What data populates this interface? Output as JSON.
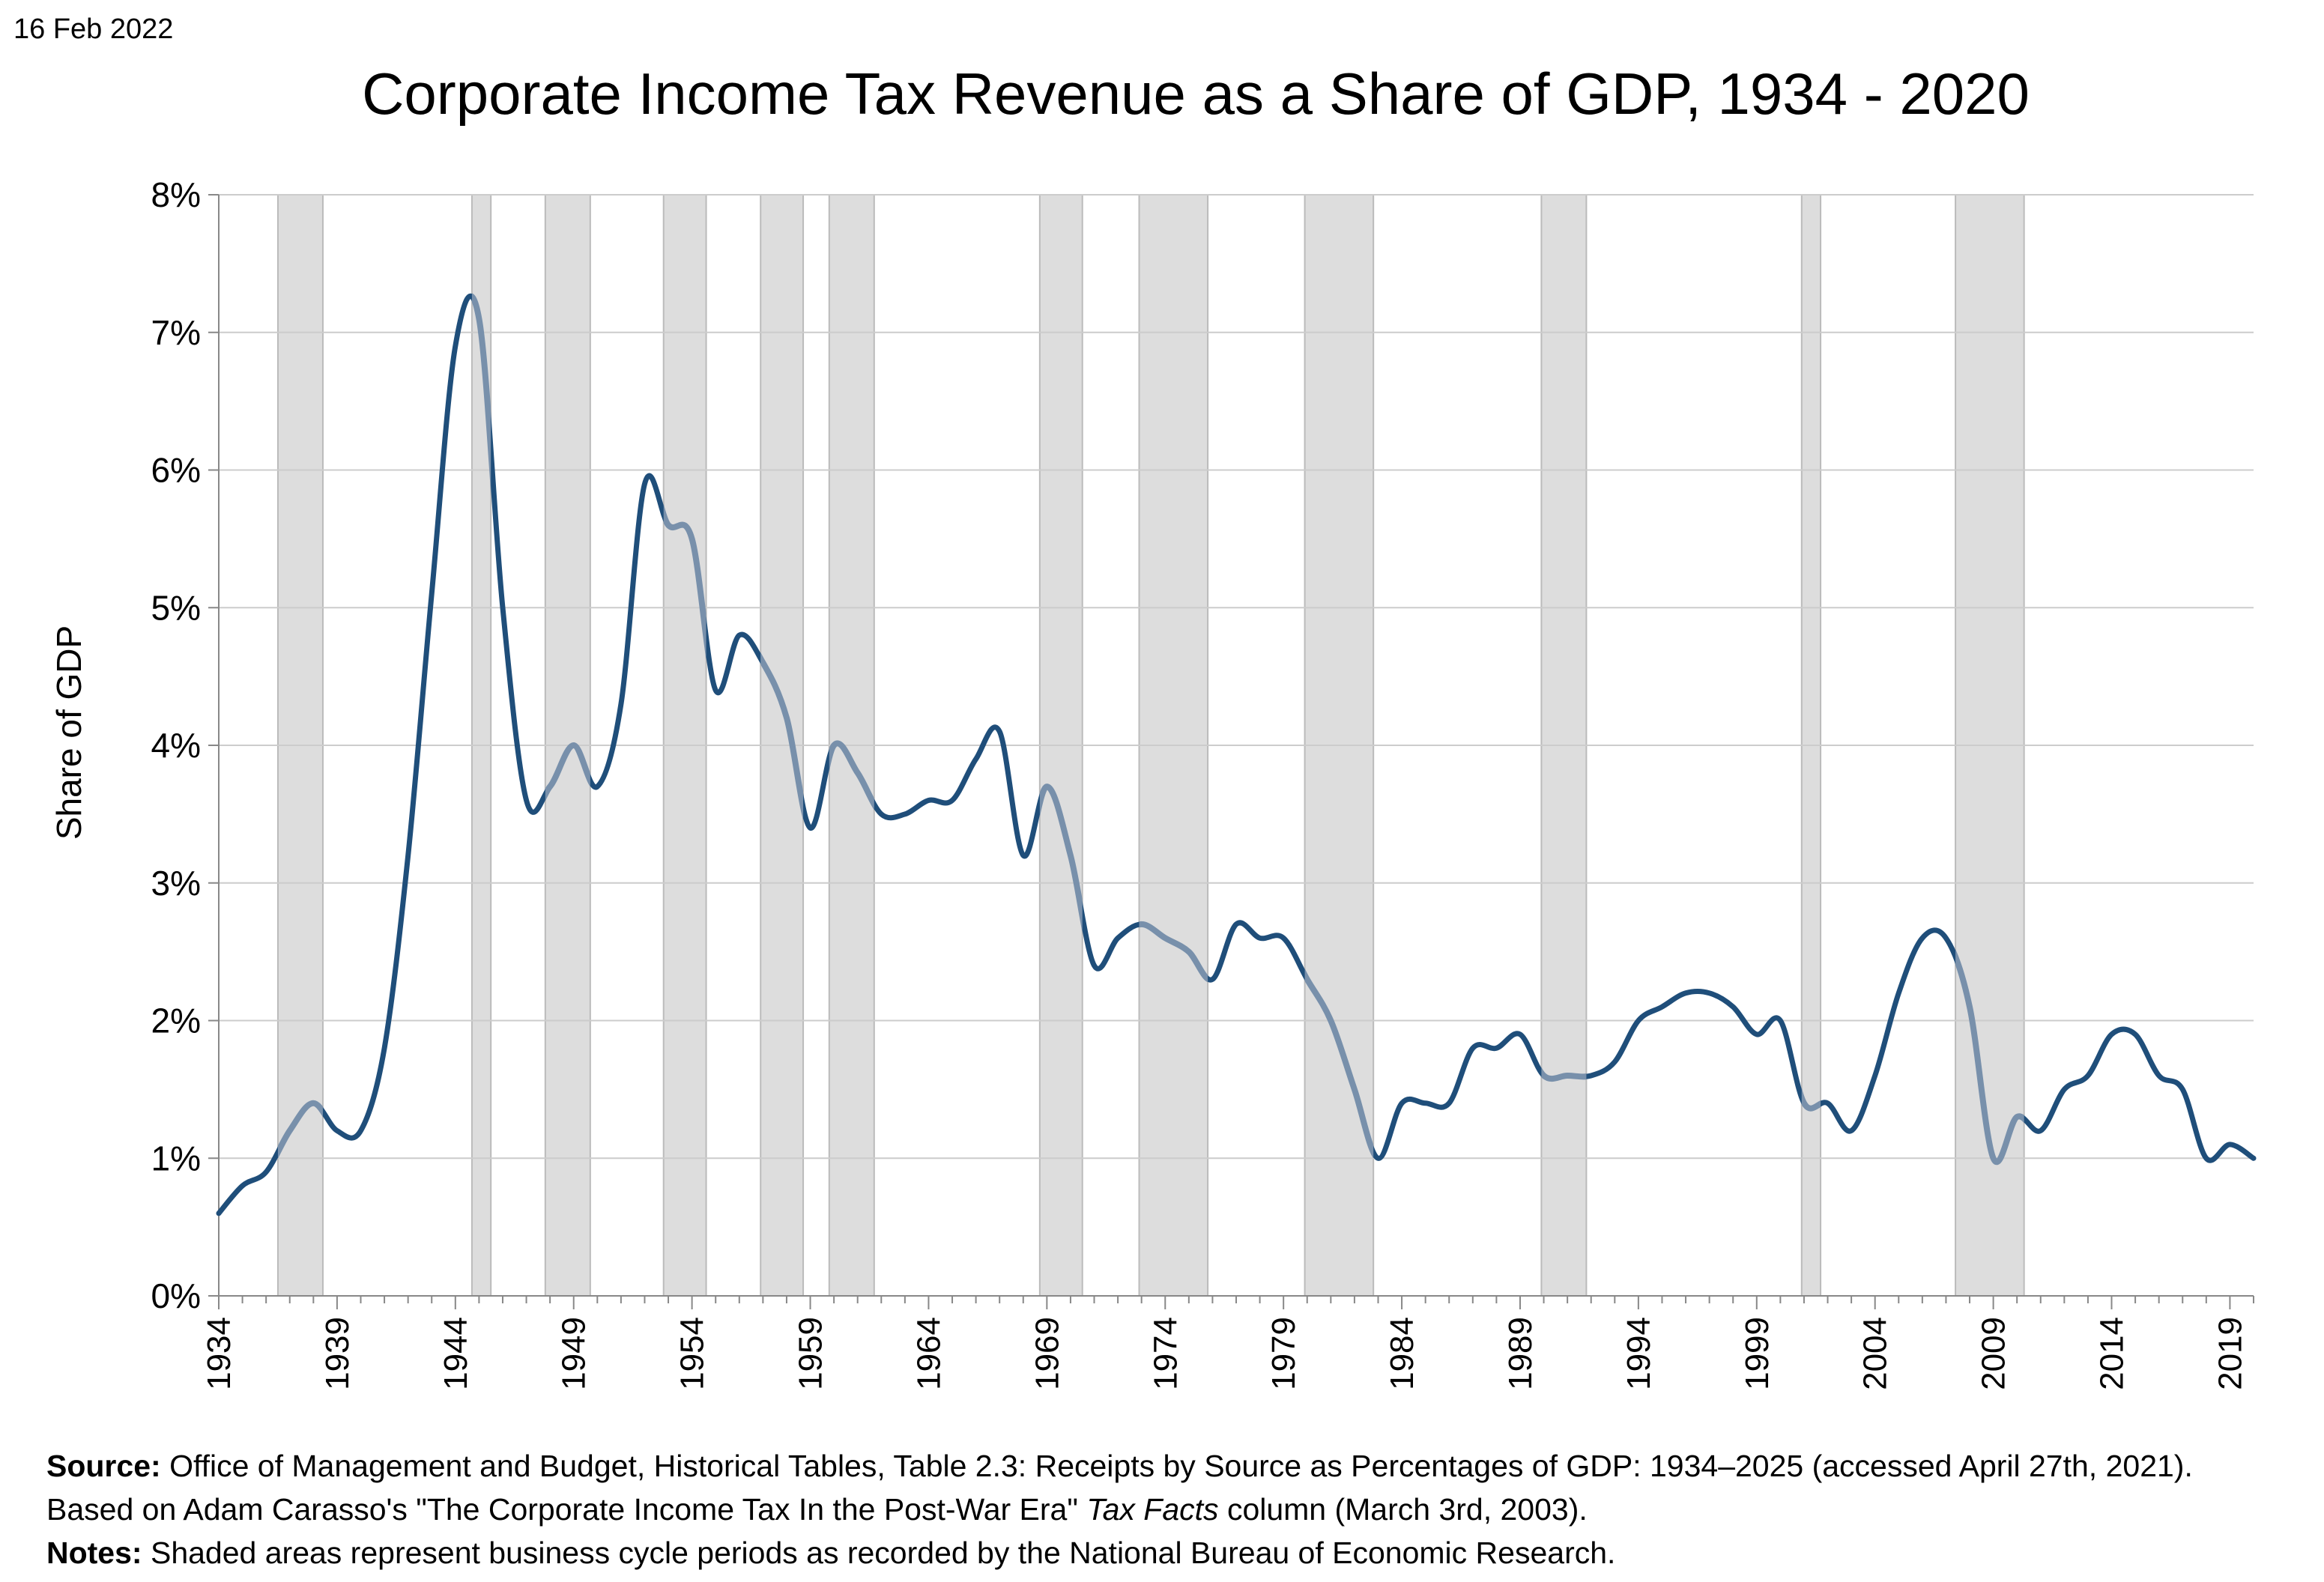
{
  "date": "16 Feb 2022",
  "chart_data": {
    "type": "line",
    "title": "Corporate Income Tax Revenue as a Share of GDP, 1934 - 2020",
    "ylabel": "Share of GDP",
    "xlabel": "",
    "xlim": [
      1934,
      2020
    ],
    "ylim": [
      0,
      8
    ],
    "y_ticks": [
      "0%",
      "1%",
      "2%",
      "3%",
      "4%",
      "5%",
      "6%",
      "7%",
      "8%"
    ],
    "x_ticks": [
      "1934",
      "1939",
      "1944",
      "1949",
      "1954",
      "1959",
      "1964",
      "1969",
      "1974",
      "1979",
      "1984",
      "1989",
      "1994",
      "1999",
      "2004",
      "2009",
      "2014",
      "2019"
    ],
    "grid": true,
    "colors": {
      "line": "#1f4e7a",
      "line_recession": "#7890ab",
      "shade": "#dddddd",
      "shade_border": "#bbbbbb",
      "grid": "#cccccc"
    },
    "recessions": [
      [
        1936.5,
        1938.4
      ],
      [
        1944.7,
        1945.5
      ],
      [
        1947.8,
        1949.7
      ],
      [
        1952.8,
        1954.6
      ],
      [
        1956.9,
        1958.7
      ],
      [
        1959.8,
        1961.7
      ],
      [
        1968.7,
        1970.5
      ],
      [
        1972.9,
        1975.8
      ],
      [
        1979.9,
        1982.8
      ],
      [
        1989.9,
        1991.8
      ],
      [
        2000.9,
        2001.7
      ],
      [
        2007.4,
        2010.3
      ]
    ],
    "x": [
      1934,
      1935,
      1936,
      1937,
      1938,
      1939,
      1940,
      1941,
      1942,
      1943,
      1944,
      1945,
      1946,
      1947,
      1948,
      1949,
      1950,
      1951,
      1952,
      1953,
      1954,
      1955,
      1956,
      1957,
      1958,
      1959,
      1960,
      1961,
      1962,
      1963,
      1964,
      1965,
      1966,
      1967,
      1968,
      1969,
      1970,
      1971,
      1972,
      1973,
      1974,
      1975,
      1976,
      1977,
      1978,
      1979,
      1980,
      1981,
      1982,
      1983,
      1984,
      1985,
      1986,
      1987,
      1988,
      1989,
      1990,
      1991,
      1992,
      1993,
      1994,
      1995,
      1996,
      1997,
      1998,
      1999,
      2000,
      2001,
      2002,
      2003,
      2004,
      2005,
      2006,
      2007,
      2008,
      2009,
      2010,
      2011,
      2012,
      2013,
      2014,
      2015,
      2016,
      2017,
      2018,
      2019,
      2020
    ],
    "values": [
      0.6,
      0.8,
      0.9,
      1.2,
      1.4,
      1.2,
      1.2,
      1.8,
      3.2,
      5.1,
      6.9,
      7.1,
      5.0,
      3.6,
      3.7,
      4.0,
      3.7,
      4.3,
      5.9,
      5.6,
      5.5,
      4.4,
      4.8,
      4.6,
      4.2,
      3.4,
      4.0,
      3.8,
      3.5,
      3.5,
      3.6,
      3.6,
      3.9,
      4.1,
      3.2,
      3.7,
      3.2,
      2.4,
      2.6,
      2.7,
      2.6,
      2.5,
      2.3,
      2.7,
      2.6,
      2.6,
      2.3,
      2.0,
      1.5,
      1.0,
      1.4,
      1.4,
      1.4,
      1.8,
      1.8,
      1.9,
      1.6,
      1.6,
      1.6,
      1.7,
      2.0,
      2.1,
      2.2,
      2.2,
      2.1,
      1.9,
      2.0,
      1.4,
      1.4,
      1.2,
      1.6,
      2.2,
      2.6,
      2.6,
      2.1,
      1.0,
      1.3,
      1.2,
      1.5,
      1.6,
      1.9,
      1.9,
      1.6,
      1.5,
      1.0,
      1.1,
      1.0
    ]
  },
  "notes": {
    "source_label": "Source:",
    "source_text": "Office of Management and Budget, Historical Tables, Table 2.3: Receipts by Source as Percentages of GDP: 1934–2025 (accessed April 27th, 2021). Based on Adam Carasso's \"The Corporate Income Tax In the Post-War Era\"",
    "source_italic": "Tax Facts",
    "source_tail": "column (March 3rd, 2003).",
    "notes_label": "Notes:",
    "notes_text": "Shaded areas represent business cycle periods as recorded by the National Bureau of Economic Research."
  }
}
